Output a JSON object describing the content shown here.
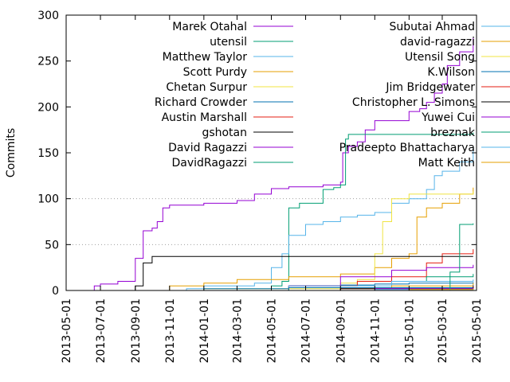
{
  "chart_data": {
    "type": "line",
    "title": "",
    "xlabel": "",
    "ylabel": "Commits",
    "xlim": [
      "2013-05-01",
      "2015-05-01"
    ],
    "ylim": [
      0,
      300
    ],
    "y_ticks": [
      0,
      50,
      100,
      150,
      200,
      250,
      300
    ],
    "x_ticks": [
      "2013-05-01",
      "2013-07-01",
      "2013-09-01",
      "2013-11-01",
      "2014-01-01",
      "2014-03-01",
      "2014-05-01",
      "2014-07-01",
      "2014-09-01",
      "2014-11-01",
      "2015-01-01",
      "2015-03-01",
      "2015-05-01"
    ],
    "grid": "horizontal dotted at 50 and 100",
    "legend_placement": "inside top, two columns",
    "series": [
      {
        "name": "Marek Otahal",
        "color": "#9400d3",
        "x": [
          "2013-06-15",
          "2013-06-20",
          "2013-07-01",
          "2013-08-01",
          "2013-08-25",
          "2013-09-01",
          "2013-09-15",
          "2013-10-01",
          "2013-10-10",
          "2013-10-20",
          "2013-11-01",
          "2014-01-01",
          "2014-03-01",
          "2014-04-01",
          "2014-05-01",
          "2014-06-01",
          "2014-08-01",
          "2014-09-01",
          "2014-09-05",
          "2014-09-15",
          "2014-10-01",
          "2014-10-15",
          "2014-11-01",
          "2015-01-01",
          "2015-01-20",
          "2015-02-01",
          "2015-02-15",
          "2015-03-01",
          "2015-03-10",
          "2015-04-01",
          "2015-04-25"
        ],
        "y": [
          0,
          5,
          7,
          10,
          10,
          35,
          65,
          68,
          75,
          90,
          93,
          95,
          98,
          105,
          111,
          113,
          115,
          118,
          150,
          157,
          162,
          175,
          185,
          195,
          198,
          205,
          215,
          225,
          245,
          260,
          275
        ]
      },
      {
        "name": "utensil",
        "color": "#009e73",
        "x": [
          "2013-05-01",
          "2014-04-01",
          "2014-05-01",
          "2014-05-20",
          "2014-06-01",
          "2014-06-20",
          "2014-08-01",
          "2014-08-20",
          "2014-09-01",
          "2014-09-10",
          "2014-09-15",
          "2015-04-25"
        ],
        "y": [
          0,
          0,
          5,
          10,
          90,
          95,
          110,
          112,
          115,
          165,
          170,
          172
        ]
      },
      {
        "name": "Matthew Taylor",
        "color": "#56b4e9",
        "x": [
          "2013-05-01",
          "2013-12-01",
          "2014-01-01",
          "2014-04-01",
          "2014-05-01",
          "2014-05-20",
          "2014-06-01",
          "2014-07-01",
          "2014-08-01",
          "2014-09-01",
          "2014-10-01",
          "2014-11-01",
          "2014-12-01",
          "2015-01-01",
          "2015-02-01",
          "2015-02-15",
          "2015-03-01",
          "2015-04-01",
          "2015-04-25"
        ],
        "y": [
          0,
          2,
          5,
          8,
          25,
          40,
          60,
          72,
          75,
          80,
          82,
          85,
          95,
          100,
          110,
          125,
          130,
          140,
          155
        ]
      },
      {
        "name": "Scott Purdy",
        "color": "#e69f00",
        "x": [
          "2013-05-01",
          "2013-11-01",
          "2014-01-01",
          "2014-03-01",
          "2014-06-01",
          "2014-09-01",
          "2014-11-01",
          "2014-12-01",
          "2015-01-01",
          "2015-01-15",
          "2015-02-01",
          "2015-03-01",
          "2015-04-01",
          "2015-04-25"
        ],
        "y": [
          0,
          5,
          8,
          12,
          15,
          18,
          25,
          35,
          40,
          80,
          90,
          95,
          105,
          112
        ]
      },
      {
        "name": "Chetan Surpur",
        "color": "#f0e442",
        "x": [
          "2013-05-01",
          "2014-01-01",
          "2014-06-01",
          "2014-09-01",
          "2014-10-01",
          "2014-11-01",
          "2014-11-15",
          "2014-12-01",
          "2015-01-01",
          "2015-04-25"
        ],
        "y": [
          0,
          2,
          5,
          8,
          12,
          40,
          75,
          100,
          105,
          108
        ]
      },
      {
        "name": "Richard Crowder",
        "color": "#0072b2",
        "x": [
          "2013-05-01",
          "2014-01-01",
          "2014-06-01",
          "2014-09-01",
          "2014-11-01",
          "2015-01-01",
          "2015-04-25"
        ],
        "y": [
          0,
          2,
          5,
          6,
          7,
          8,
          9
        ]
      },
      {
        "name": "Austin Marshall",
        "color": "#e51e10",
        "x": [
          "2013-05-01",
          "2014-06-01",
          "2014-10-01",
          "2014-12-01",
          "2015-02-01",
          "2015-03-01",
          "2015-04-25"
        ],
        "y": [
          0,
          5,
          10,
          15,
          30,
          40,
          45
        ]
      },
      {
        "name": "gshotan",
        "color": "#000000",
        "x": [
          "2013-05-01",
          "2013-09-01",
          "2013-09-15",
          "2013-10-01",
          "2014-09-01",
          "2015-04-25"
        ],
        "y": [
          0,
          5,
          30,
          37,
          37,
          37
        ]
      },
      {
        "name": "David Ragazzi",
        "color": "#9400d3",
        "x": [
          "2013-05-01",
          "2014-06-01",
          "2014-09-01",
          "2014-12-01",
          "2015-02-01",
          "2015-04-25"
        ],
        "y": [
          0,
          5,
          15,
          22,
          25,
          28
        ]
      },
      {
        "name": "DavidRagazzi",
        "color": "#009e73",
        "x": [
          "2013-05-01",
          "2014-06-01",
          "2014-12-01",
          "2015-02-01",
          "2015-04-25"
        ],
        "y": [
          0,
          3,
          10,
          15,
          18
        ]
      },
      {
        "name": "Subutai Ahmad",
        "color": "#56b4e9",
        "x": [
          "2013-05-01",
          "2014-06-01",
          "2014-12-01",
          "2015-04-25"
        ],
        "y": [
          0,
          5,
          10,
          12
        ]
      },
      {
        "name": "david-ragazzi",
        "color": "#e69f00",
        "x": [
          "2013-05-01",
          "2014-06-01",
          "2014-12-01",
          "2015-04-25"
        ],
        "y": [
          0,
          3,
          5,
          8
        ]
      },
      {
        "name": "Utensil Song",
        "color": "#f0e442",
        "x": [
          "2013-05-01",
          "2014-06-01",
          "2015-04-25"
        ],
        "y": [
          0,
          2,
          5
        ]
      },
      {
        "name": "K.Wilson",
        "color": "#0072b2",
        "x": [
          "2013-05-01",
          "2014-06-01",
          "2015-04-25"
        ],
        "y": [
          0,
          3,
          6
        ]
      },
      {
        "name": "Jim Bridgewater",
        "color": "#e51e10",
        "x": [
          "2013-05-01",
          "2014-09-01",
          "2015-04-25"
        ],
        "y": [
          0,
          2,
          5
        ]
      },
      {
        "name": "Christopher L. Simons",
        "color": "#000000",
        "x": [
          "2013-05-01",
          "2014-09-01",
          "2015-04-25"
        ],
        "y": [
          0,
          2,
          4
        ]
      },
      {
        "name": "Yuwei Cui",
        "color": "#9400d3",
        "x": [
          "2013-05-01",
          "2014-11-01",
          "2015-04-25"
        ],
        "y": [
          0,
          2,
          3
        ]
      },
      {
        "name": "breznak",
        "color": "#009e73",
        "x": [
          "2013-05-01",
          "2015-03-01",
          "2015-03-15",
          "2015-04-01",
          "2015-04-25"
        ],
        "y": [
          0,
          0,
          20,
          72,
          73
        ]
      },
      {
        "name": "Pradeepto Bhattacharya",
        "color": "#56b4e9",
        "x": [
          "2013-05-01",
          "2014-11-01",
          "2015-04-25"
        ],
        "y": [
          0,
          1,
          2
        ]
      },
      {
        "name": "Matt Keith",
        "color": "#e69f00",
        "x": [
          "2013-05-01",
          "2015-01-01",
          "2015-04-25"
        ],
        "y": [
          0,
          1,
          2
        ]
      }
    ]
  }
}
